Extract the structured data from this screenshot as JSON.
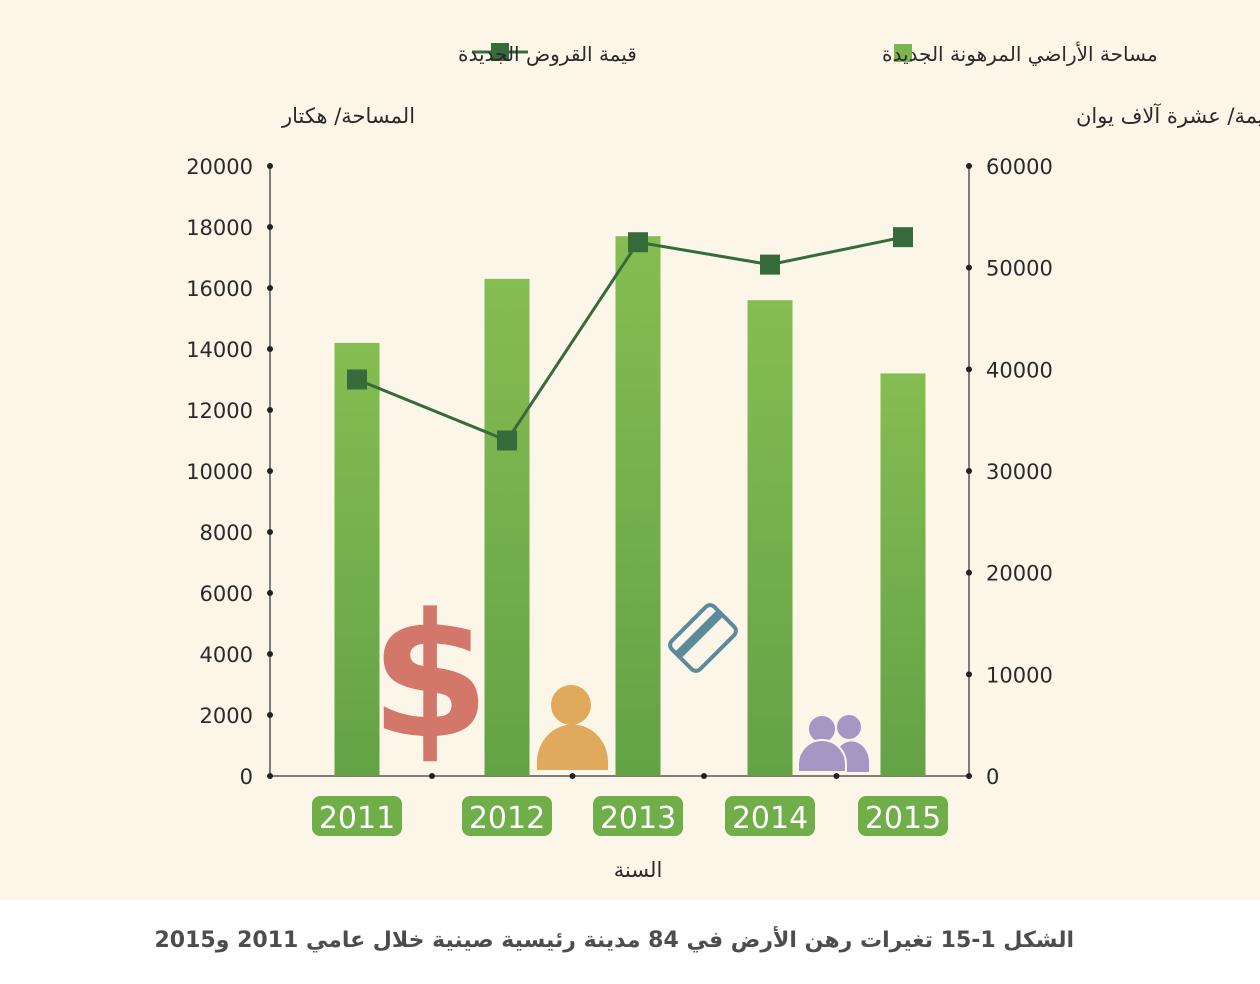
{
  "chart_data": {
    "type": "bar+line",
    "categories": [
      "2011",
      "2012",
      "2013",
      "2014",
      "2015"
    ],
    "series": [
      {
        "name": "مساحة الأراضي المرهونة الجديدة",
        "type": "bar",
        "axis": "left",
        "color": "#7cb451",
        "values": [
          14200,
          16300,
          17700,
          15600,
          13200
        ]
      },
      {
        "name": "قيمة القروض الجديدة",
        "type": "line",
        "axis": "right",
        "color": "#386b3c",
        "values": [
          39000,
          33000,
          52500,
          50300,
          53000
        ]
      }
    ],
    "left_axis": {
      "label": "المساحة/ هكتار",
      "ylim": [
        0,
        20000
      ],
      "ticks": [
        "0",
        "2000",
        "4000",
        "6000",
        "8000",
        "10000",
        "12000",
        "14000",
        "16000",
        "18000",
        "20000"
      ]
    },
    "right_axis": {
      "label": "القيمة/ عشرة آلاف يوان",
      "ylim": [
        0,
        60000
      ],
      "ticks": [
        "0",
        "10000",
        "20000",
        "30000",
        "40000",
        "50000",
        "60000"
      ]
    },
    "xlabel": "السنة",
    "legend_position": "top",
    "grid": false
  },
  "decorations": {
    "icons": [
      "dollar-icon",
      "person-icon",
      "credit-card-icon",
      "people-icon"
    ],
    "colors": {
      "dollar": "#d4776b",
      "person": "#e0a95b",
      "card": "#5b8a9c",
      "people": "#a497c4"
    }
  },
  "caption": "الشكل 1-15 تغيرات رهن الأرض في 84 مدينة رئيسية صينية خلال عامي 2011 و2015"
}
